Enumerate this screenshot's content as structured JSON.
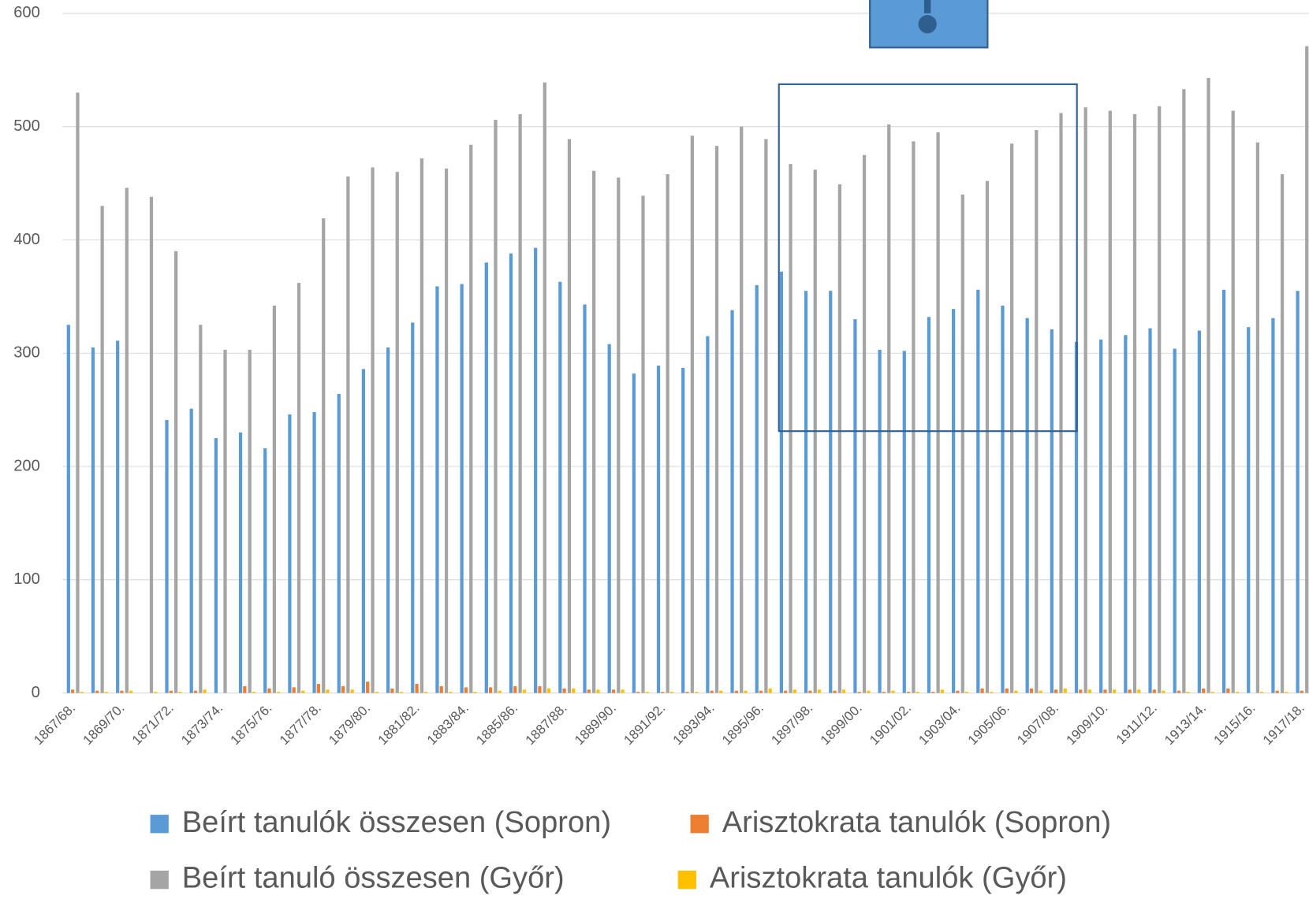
{
  "chart_data": {
    "type": "bar",
    "categories": [
      "1867/68.",
      null,
      "1869/70.",
      null,
      "1871/72.",
      null,
      "1873/74.",
      null,
      "1875/76.",
      null,
      "1877/78.",
      null,
      "1879/80.",
      null,
      "1881/82.",
      null,
      "1883/84.",
      null,
      "1885/86.",
      null,
      "1887/88.",
      null,
      "1889/90.",
      null,
      "1891/92.",
      null,
      "1893/94.",
      null,
      "1895/96.",
      null,
      "1897/98.",
      null,
      "1899/00.",
      null,
      "1901/02.",
      null,
      "1903/04.",
      null,
      "1905/06.",
      null,
      "1907/08.",
      null,
      "1909/10.",
      null,
      "1911/12.",
      null,
      "1913/14.",
      null,
      "1915/16.",
      null,
      "1917/18."
    ],
    "series": [
      {
        "name": "Beírt tanulók összesen (Sopron)",
        "color": "#5b9bd5",
        "values": [
          325,
          305,
          311,
          null,
          241,
          251,
          225,
          230,
          216,
          246,
          248,
          264,
          286,
          305,
          327,
          359,
          361,
          380,
          388,
          393,
          363,
          343,
          308,
          282,
          289,
          287,
          315,
          338,
          360,
          372,
          355,
          355,
          330,
          303,
          302,
          332,
          339,
          356,
          342,
          331,
          321,
          310,
          312,
          316,
          322,
          304,
          320,
          356,
          323,
          331,
          355
        ]
      },
      {
        "name": "Arisztokrata tanulók (Sopron)",
        "color": "#ed7d31",
        "values": [
          3,
          2,
          2,
          0,
          2,
          2,
          0,
          6,
          4,
          5,
          8,
          6,
          10,
          4,
          8,
          6,
          5,
          5,
          6,
          6,
          4,
          3,
          3,
          1,
          1,
          1,
          2,
          2,
          2,
          2,
          2,
          2,
          1,
          1,
          1,
          1,
          2,
          4,
          4,
          4,
          3,
          3,
          3,
          3,
          3,
          2,
          4,
          4,
          0,
          2,
          2
        ]
      },
      {
        "name": "Beírt tanuló összesen (Győr)",
        "color": "#a5a5a5",
        "values": [
          530,
          430,
          446,
          438,
          390,
          325,
          303,
          303,
          342,
          362,
          419,
          456,
          464,
          460,
          472,
          463,
          484,
          506,
          511,
          539,
          489,
          461,
          455,
          439,
          458,
          492,
          483,
          500,
          489,
          467,
          462,
          449,
          475,
          502,
          487,
          495,
          440,
          452,
          485,
          497,
          512,
          517,
          514,
          511,
          518,
          533,
          543,
          514,
          486,
          458,
          571
        ]
      },
      {
        "name": "Arisztokrata tanulók (Győr)",
        "color": "#ffc000",
        "values": [
          1,
          1,
          2,
          1,
          1,
          3,
          0,
          1,
          1,
          2,
          3,
          3,
          1,
          1,
          1,
          1,
          1,
          2,
          3,
          4,
          4,
          3,
          3,
          1,
          1,
          1,
          2,
          2,
          4,
          3,
          3,
          3,
          2,
          2,
          1,
          3,
          1,
          1,
          2,
          2,
          4,
          3,
          3,
          3,
          2,
          1,
          1,
          1,
          1,
          1,
          1
        ]
      }
    ],
    "ylim": [
      0,
      600
    ],
    "yticks": [
      0,
      100,
      200,
      300,
      400,
      500,
      600
    ],
    "grid": true,
    "legend": "bottom"
  }
}
